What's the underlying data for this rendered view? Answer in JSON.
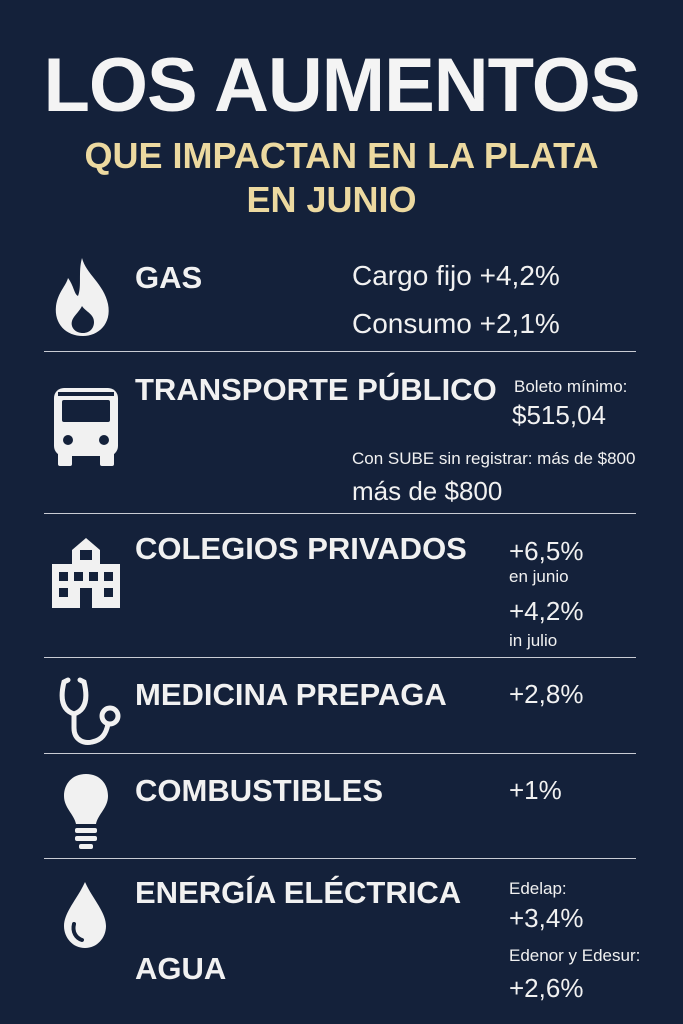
{
  "title": "LOS AUMENTOS",
  "subtitle_line1": "QUE IMPACTAN EN LA PLATA",
  "subtitle_line2": "EN JUNIO",
  "colors": {
    "background": "#14213a",
    "accent": "#ecd9a0",
    "text": "#f1f1f1"
  },
  "items": [
    {
      "icon": "flame-icon",
      "label": "GAS",
      "lines": [
        "Cargo fijo +4,2%",
        "Consumo +2,1%"
      ]
    },
    {
      "icon": "bus-icon",
      "label": "TRANSPORTE PÚBLICO",
      "lines": [
        "Boleto mínimo:",
        "$515,04",
        "Con SUBE sin registrar: más de $800",
        "más de $800"
      ]
    },
    {
      "icon": "school-building-icon",
      "label": "COLEGIOS PRIVADOS",
      "lines": [
        "+6,5%",
        "en junio",
        "+4,2%",
        "in julio"
      ]
    },
    {
      "icon": "stethoscope-icon",
      "label": "MEDICINA PREPAGA",
      "lines": [
        "+2,8%"
      ]
    },
    {
      "icon": "light-bulb-icon",
      "label": "COMBUSTIBLES",
      "lines": [
        "+1%"
      ]
    },
    {
      "icon": "water-drop-icon",
      "label": "ENERGÍA ELÉCTRICA",
      "label2": "AGUA",
      "lines": [
        "Edelap:",
        "+3,4%",
        "Edenor y Edesur:",
        "+2,6%"
      ]
    }
  ]
}
